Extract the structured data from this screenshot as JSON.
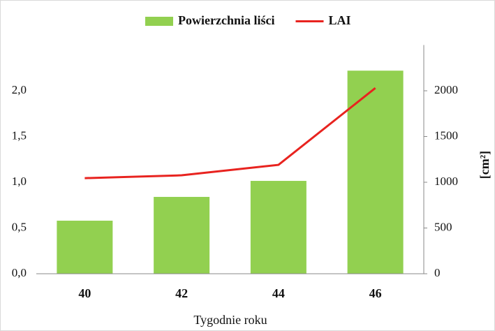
{
  "chart_data": {
    "type": "bar",
    "categories": [
      "40",
      "42",
      "44",
      "46"
    ],
    "xlabel": "Tygodnie roku",
    "y2label": "[cm²]",
    "series": [
      {
        "name": "Powierzchnia liści",
        "type": "bar",
        "axis": "y2",
        "color": "#92d050",
        "values": [
          580,
          840,
          1015,
          2220
        ]
      },
      {
        "name": "LAI",
        "type": "line",
        "axis": "y",
        "color": "#e8231f",
        "values": [
          1.045,
          1.076,
          1.19,
          2.03
        ]
      }
    ],
    "ylim": [
      0,
      2.5
    ],
    "yticks": [
      {
        "value": 0,
        "label": "0,0"
      },
      {
        "value": 0.5,
        "label": "0,5"
      },
      {
        "value": 1,
        "label": "1,0"
      },
      {
        "value": 1.5,
        "label": "1,5"
      },
      {
        "value": 2,
        "label": "2,0"
      }
    ],
    "y2lim": [
      0,
      2500
    ],
    "y2ticks": [
      0,
      500,
      1000,
      1500,
      2000
    ],
    "legend": "top"
  }
}
